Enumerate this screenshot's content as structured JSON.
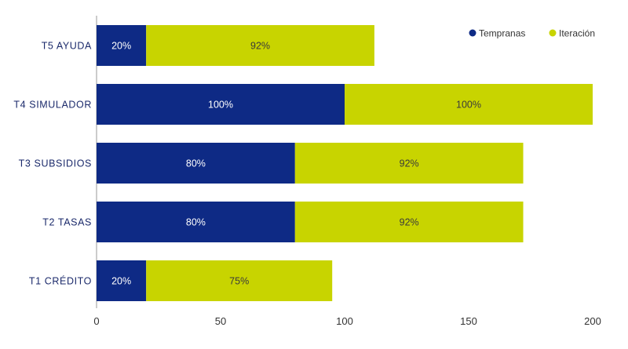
{
  "chart_data": {
    "type": "bar",
    "orientation": "horizontal",
    "stacked": true,
    "categories": [
      "T5 AYUDA",
      "T4 SIMULADOR",
      "T3 SUBSIDIOS",
      "T2 TASAS",
      "T1 CRÉDITO"
    ],
    "series": [
      {
        "name": "Tempranas",
        "color": "#0e2a85",
        "label_color": "#ffffff",
        "values": [
          20,
          100,
          80,
          80,
          20
        ],
        "labels": [
          "20%",
          "100%",
          "80%",
          "80%",
          "20%"
        ]
      },
      {
        "name": "Iteración",
        "color": "#c8d400",
        "label_color": "#3a3a3a",
        "values": [
          92,
          100,
          92,
          92,
          75
        ],
        "labels": [
          "92%",
          "100%",
          "92%",
          "92%",
          "75%"
        ]
      }
    ],
    "xlim": [
      0,
      200
    ],
    "xticks": [
      "0",
      "50",
      "100",
      "150",
      "200"
    ],
    "grid": false,
    "legend_position": "top-right"
  }
}
